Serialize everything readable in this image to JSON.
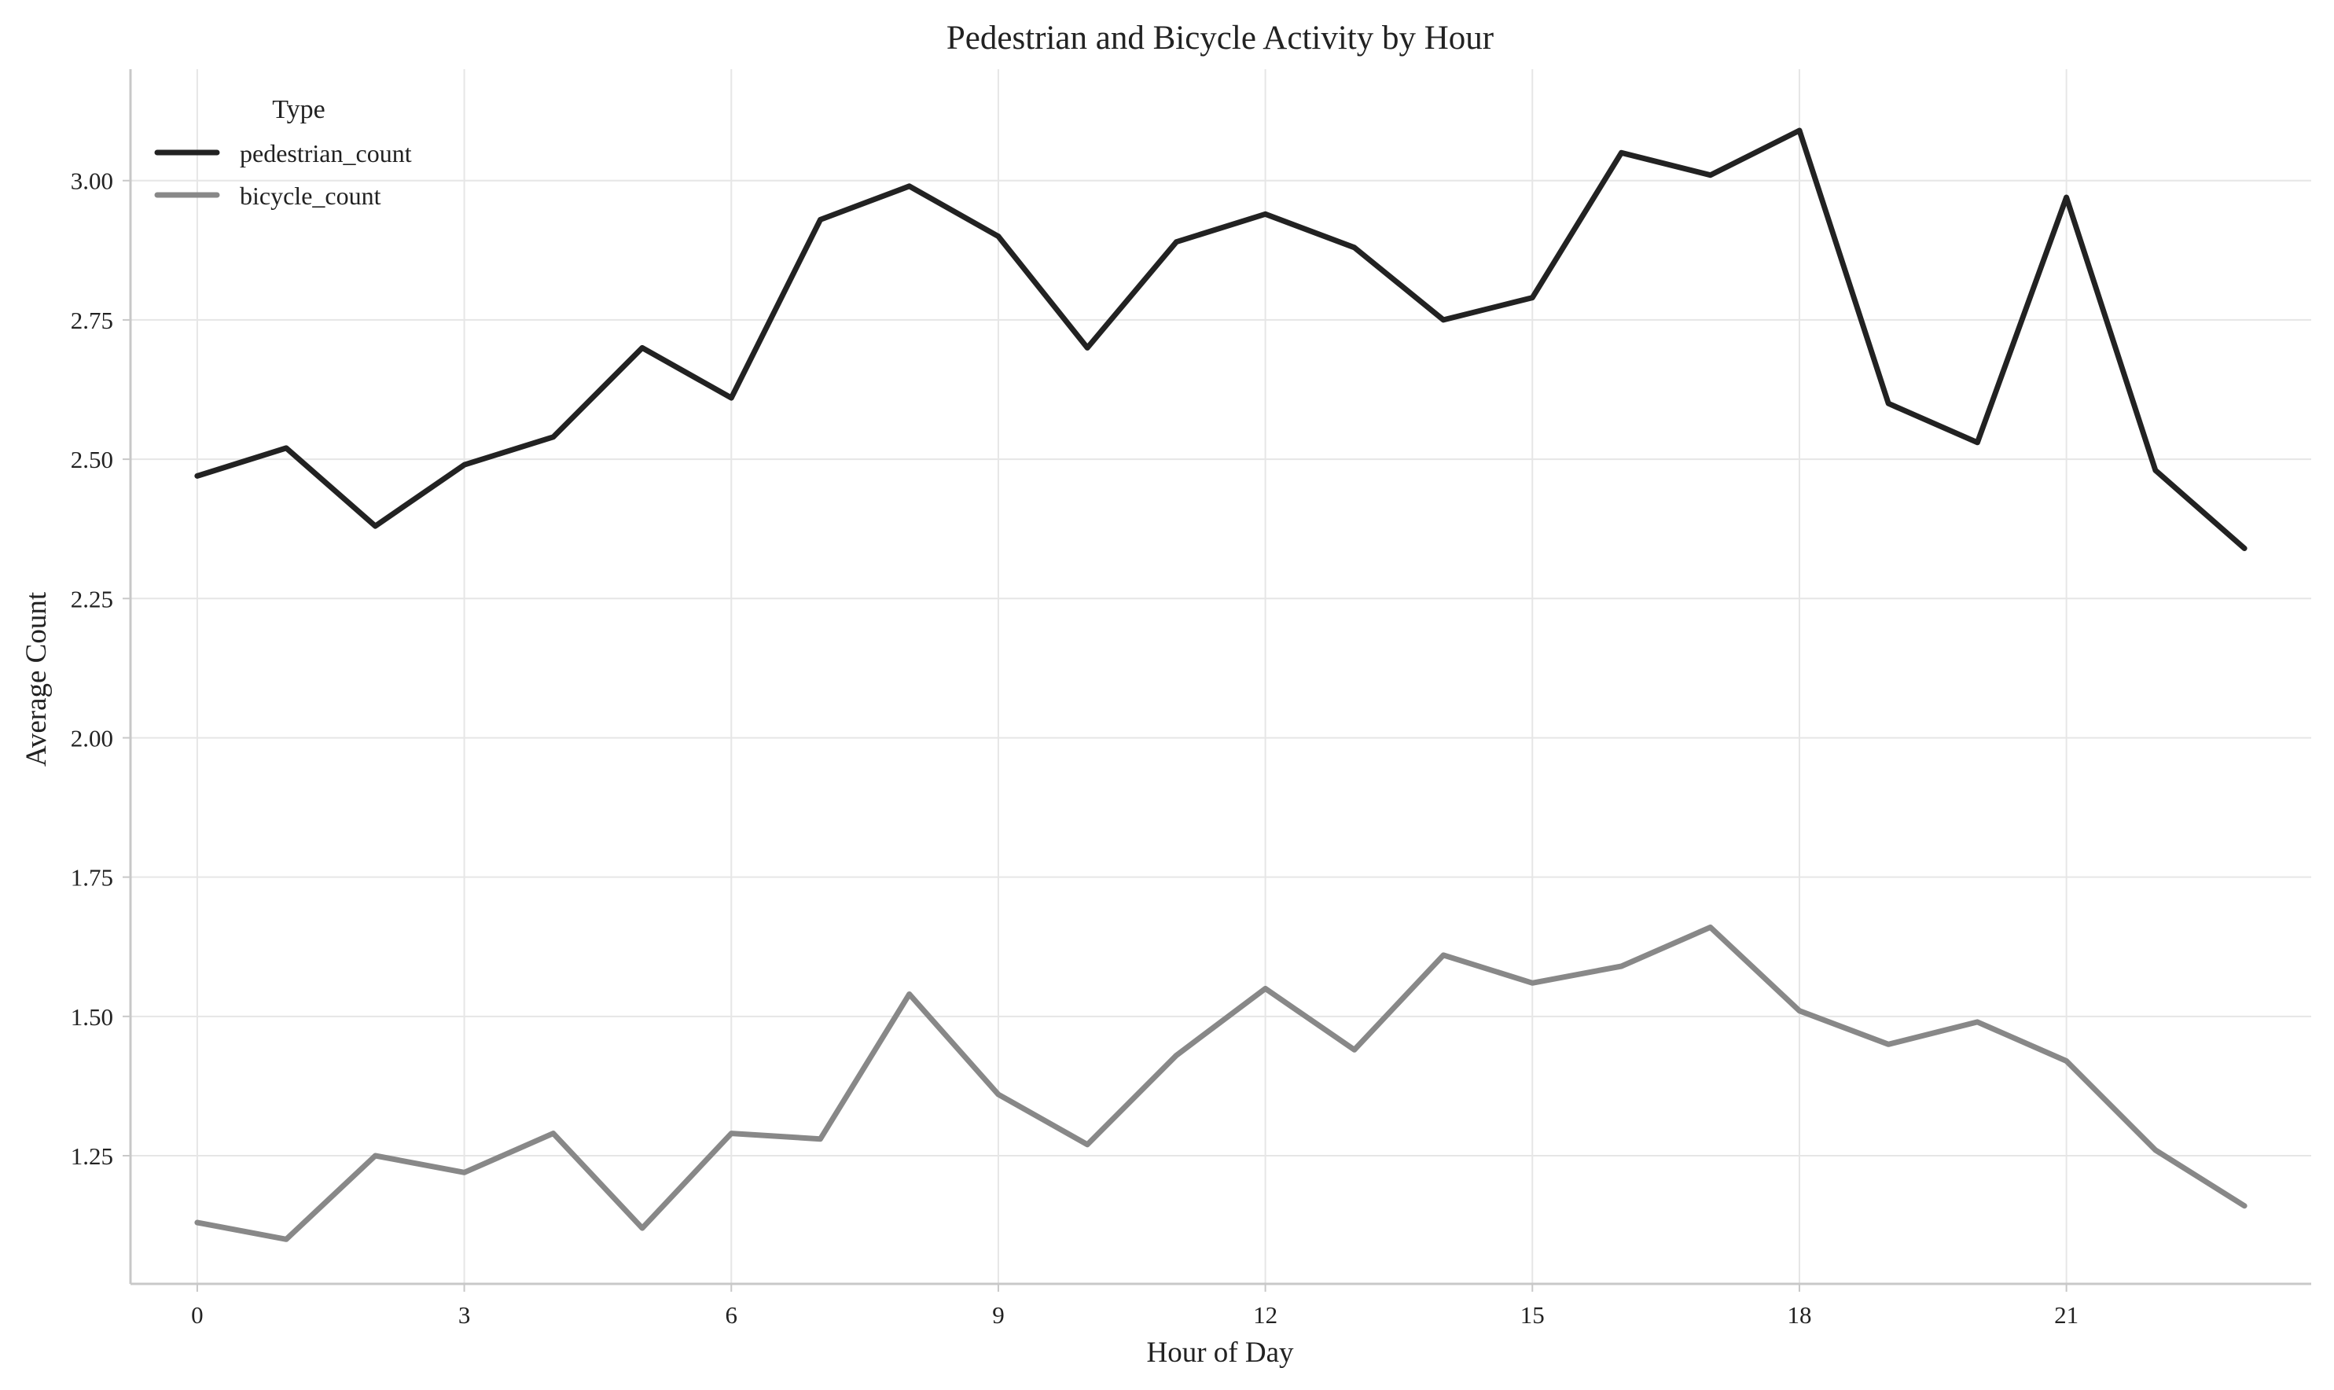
{
  "chart_data": {
    "type": "line",
    "title": "Pedestrian and Bicycle Activity by Hour",
    "xlabel": "Hour of Day",
    "ylabel": "Average Count",
    "x": [
      0,
      1,
      2,
      3,
      4,
      5,
      6,
      7,
      8,
      9,
      10,
      11,
      12,
      13,
      14,
      15,
      16,
      17,
      18,
      19,
      20,
      21,
      22,
      23
    ],
    "xticks": [
      0,
      3,
      6,
      9,
      12,
      15,
      18,
      21
    ],
    "yticks": [
      1.25,
      1.5,
      1.75,
      2.0,
      2.25,
      2.5,
      2.75,
      3.0
    ],
    "ytick_labels": [
      "1.25",
      "1.50",
      "1.75",
      "2.00",
      "2.25",
      "2.50",
      "2.75",
      "3.00"
    ],
    "xlim": [
      -0.75,
      23.75
    ],
    "ylim": [
      1.02,
      3.2
    ],
    "grid": true,
    "legend": {
      "title": "Type",
      "placement": "top-left"
    },
    "series": [
      {
        "name": "pedestrian_count",
        "color": "#222222",
        "values": [
          2.47,
          2.52,
          2.38,
          2.49,
          2.54,
          2.7,
          2.61,
          2.93,
          2.99,
          2.9,
          2.7,
          2.89,
          2.94,
          2.88,
          2.75,
          2.79,
          3.05,
          3.01,
          3.09,
          2.6,
          2.53,
          2.97,
          2.48,
          2.34
        ]
      },
      {
        "name": "bicycle_count",
        "color": "#888888",
        "values": [
          1.13,
          1.1,
          1.25,
          1.22,
          1.29,
          1.12,
          1.29,
          1.28,
          1.54,
          1.36,
          1.27,
          1.43,
          1.55,
          1.44,
          1.61,
          1.56,
          1.59,
          1.66,
          1.51,
          1.45,
          1.49,
          1.42,
          1.26,
          1.16
        ]
      }
    ]
  }
}
